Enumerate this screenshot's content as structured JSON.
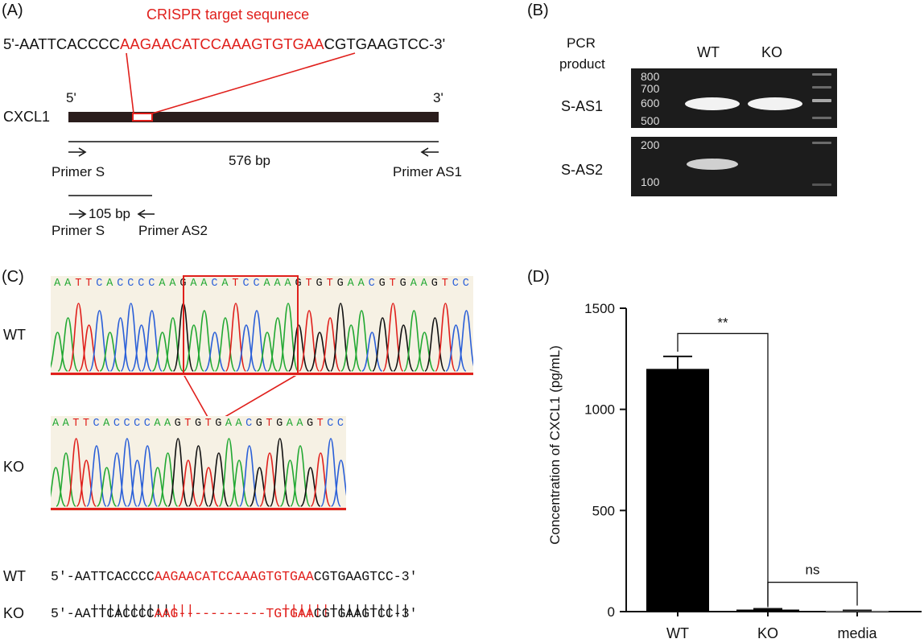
{
  "panels": {
    "a": "(A)",
    "b": "(B)",
    "c": "(C)",
    "d": "(D)"
  },
  "panel_a": {
    "target_title": "CRISPR target sequnece",
    "seq_prefix": "5'-AATTCACCCC",
    "seq_target": "AAGAACATCCAAAGTGTGAA",
    "seq_suffix": "CGTGAAGTCC-3'",
    "gene": "CXCL1",
    "end5": "5'",
    "end3": "3'",
    "amplicon_long": "576 bp",
    "primer_s": "Primer S",
    "primer_as1": "Primer AS1",
    "amplicon_short": "105 bp",
    "primer_s2": "Primer S",
    "primer_as2": "Primer AS2"
  },
  "panel_b": {
    "pcr_product": "PCR\nproduct",
    "pcr_line1": "PCR",
    "pcr_line2": "product",
    "lane_wt": "WT",
    "lane_ko": "KO",
    "row1": "S-AS1",
    "row2": "S-AS2",
    "ladder_top": [
      "800",
      "700",
      "600",
      "500"
    ],
    "ladder_bottom": [
      "200",
      "100"
    ]
  },
  "panel_c": {
    "wt_label": "WT",
    "ko_label": "KO",
    "wt_read": "AATTCACCCCAAGAACATCCAAAGTGTGAACGTGAAGTCC",
    "ko_read": "AATTCACCCCAAGTGTGAACGTGAAGTCC",
    "align_wt_label": "WT",
    "align_ko_label": "KO",
    "wt_left": "5'-AATTCACCCC",
    "wt_red": "AAGAACATCCAAAGTGTGAA",
    "wt_right": "CGTGAAGTCC-3'",
    "match_bars": "|||||||||||||           ||||||||||||||||",
    "ko_left": "5'-AATTCACCCC",
    "ko_red_a": "AAG",
    "ko_gap": "-----------",
    "ko_red_b": "TGTGAA",
    "ko_right": "CGTGAAGTCC-3'"
  },
  "chart_data": {
    "type": "bar",
    "categories": [
      "WT",
      "KO",
      "media"
    ],
    "values": [
      1200,
      10,
      5
    ],
    "errors": [
      62,
      4,
      1
    ],
    "ylabel": "Concentration of CXCL1 (pg/mL)",
    "ylim": [
      0,
      1500
    ],
    "yticks": [
      "0",
      "500",
      "1000",
      "1500"
    ],
    "colors": [
      "#000000",
      "#000000",
      "#9a9a9a"
    ],
    "significance": [
      {
        "from": "WT",
        "to": "KO",
        "label": "**"
      },
      {
        "from": "KO",
        "to": "media",
        "label": "ns"
      }
    ]
  },
  "colors": {
    "red": "#e0201c",
    "A": "#22a832",
    "C": "#2a5fd8",
    "G": "#111111",
    "T": "#e0201c"
  }
}
